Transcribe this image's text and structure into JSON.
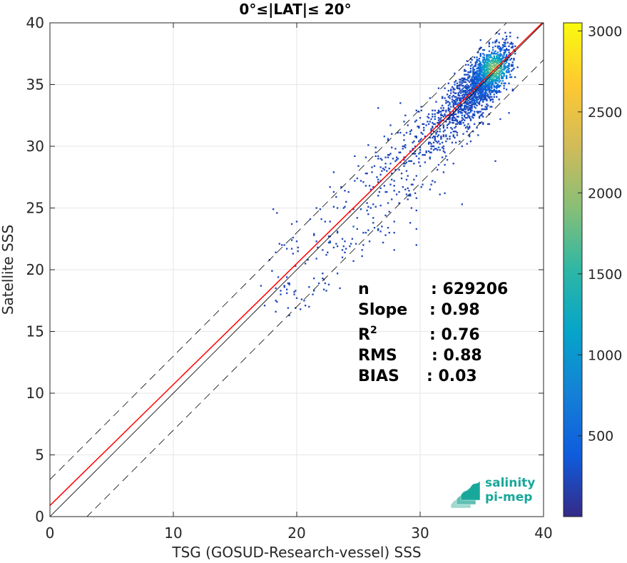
{
  "chart_data": {
    "type": "heatmap",
    "title": "0°≤|LAT|≤ 20°",
    "xlabel": "TSG (GOSUD-Research-vessel) SSS",
    "ylabel": "Satellite SSS",
    "xlim": [
      0,
      40
    ],
    "ylim": [
      0,
      40
    ],
    "xticks": [
      0,
      10,
      20,
      30,
      40
    ],
    "yticks": [
      0,
      5,
      10,
      15,
      20,
      25,
      30,
      35,
      40
    ],
    "grid": true,
    "colorbar": {
      "ticks": [
        500,
        1000,
        1500,
        2000,
        2500,
        3000
      ],
      "range": [
        1,
        3050
      ],
      "colormap": "parula",
      "colors": [
        "#352a87",
        "#0f5cdd",
        "#1481d6",
        "#06a4ca",
        "#2eb7a4",
        "#87bf77",
        "#d1bb59",
        "#fec832",
        "#f9fb0e"
      ]
    },
    "reference_lines": {
      "identity": {
        "slope": 1,
        "intercept": 0,
        "color": "#000000",
        "style": "solid"
      },
      "bounds": {
        "slope": 1,
        "offset": 3,
        "color": "#000000",
        "style": "dashed"
      },
      "fit": {
        "slope": 0.98,
        "intercept": 0.9,
        "color": "#ff0000",
        "style": "solid"
      }
    },
    "density_clusters": [
      {
        "x": 35.3,
        "y": 35.5,
        "sx": 1.0,
        "sy": 1.3,
        "rho": 0.6,
        "n": 1500
      },
      {
        "x": 33.5,
        "y": 33.8,
        "sx": 1.4,
        "sy": 1.5,
        "rho": 0.7,
        "n": 500
      },
      {
        "x": 31.0,
        "y": 30.8,
        "sx": 2.2,
        "sy": 1.4,
        "rho": 0.6,
        "n": 180
      },
      {
        "x": 27.5,
        "y": 27.3,
        "sx": 2.6,
        "sy": 1.9,
        "rho": 0.5,
        "n": 140
      },
      {
        "x": 23.5,
        "y": 23.0,
        "sx": 2.6,
        "sy": 1.7,
        "rho": 0.4,
        "n": 90
      },
      {
        "x": 20.5,
        "y": 18.5,
        "sx": 1.8,
        "sy": 1.4,
        "rho": 0.3,
        "n": 50
      }
    ],
    "hot_spot": {
      "x": 36.0,
      "y": 36.3,
      "peak": 3050
    },
    "stats": [
      {
        "label": "n",
        "value": ": 629206"
      },
      {
        "label": "Slope",
        "value": ": 0.98"
      },
      {
        "label": "R",
        "sup": "2",
        "value": ": 0.76"
      },
      {
        "label": "RMS",
        "value": ": 0.88"
      },
      {
        "label": "BIAS",
        "value": ": 0.03"
      }
    ]
  },
  "logo": {
    "line1": "salinity",
    "line2": "pi-mep"
  }
}
